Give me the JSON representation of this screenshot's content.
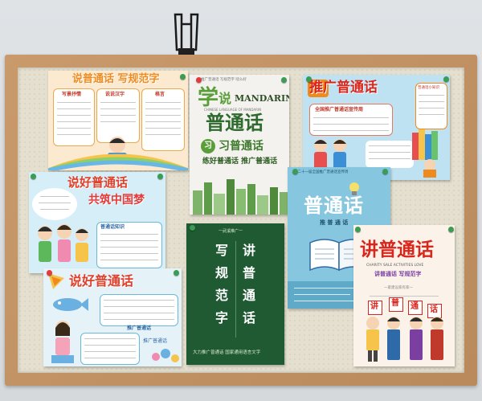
{
  "posters": {
    "p1": {
      "title": "说普通话 写规范字",
      "boxes": [
        "写景抒情",
        "说说汉字",
        "格言"
      ]
    },
    "p2": {
      "header": "推广普通话 写规范字 啥么好",
      "xue": "学",
      "shuo": "说",
      "mandarin": "MANDARIN",
      "subtitle": "CHINESE LANGUAGE OF MANDARIN",
      "putonghua": "普通话",
      "xi": "习",
      "practice": "习普通话",
      "slogan": "练好普通话 推广普通话"
    },
    "p3": {
      "title": "推广普通话",
      "banner": "全国推广普通话宣传周",
      "side": "普通话小知识"
    },
    "p4": {
      "title": "说好普通话",
      "subtitle": "共筑中国梦",
      "note": "普通话知识"
    },
    "p5": {
      "header": "第二十一届全国推广普通话宣传周",
      "title": "普通话",
      "sub": "推 普 通 话"
    },
    "p6": {
      "header": "一武溪推广一",
      "cols": [
        "写",
        "规",
        "范",
        "字",
        "讲",
        "普",
        "通",
        "话"
      ],
      "footer": "大力推广普通话 国家通用语言文字"
    },
    "p7": {
      "title": "说好普通话",
      "section": "推广普通话",
      "kids": "推广普通话"
    },
    "p8": {
      "title": "讲普通话",
      "eng": "CHARITY SALE ACTIVITIES LOVE",
      "sub": "讲普通话 写规范字",
      "tag": "一家建设家有家一",
      "signs": [
        "讲",
        "普",
        "通",
        "话"
      ]
    }
  },
  "colors": {
    "frame": "#c08f60",
    "cork": "#e4dfcf",
    "orange": "#f28a1e",
    "red": "#e23a3a",
    "green_dark": "#2e6b3e",
    "green_board": "#1f5a32",
    "teal": "#7fc3dd",
    "blue": "#2f6aa8",
    "purple": "#7a3fa0"
  },
  "icons": {
    "clip": "binder-clip-icon",
    "pin": "push-pin-icon",
    "book": "open-book-icon",
    "bulb": "light-bulb-icon"
  }
}
